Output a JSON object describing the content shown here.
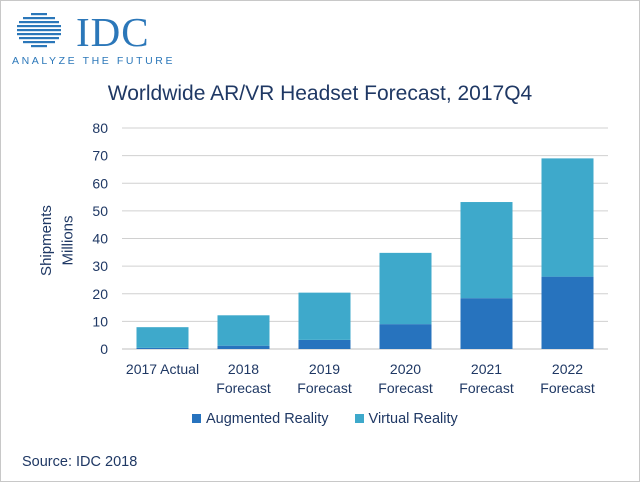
{
  "logo": {
    "word": "IDC",
    "tagline": "ANALYZE THE FUTURE"
  },
  "source": "Source: IDC 2018",
  "colors": {
    "ar": "#2773be",
    "vr": "#3ea9cb",
    "text": "#1f3864",
    "grid": "#d0d0d0",
    "brand": "#2b77b9"
  },
  "chart_data": {
    "type": "bar",
    "stacked": true,
    "title": "Worldwide AR/VR Headset Forecast, 2017Q4",
    "ylabel_line1": "Shipments",
    "ylabel_line2": "Millions",
    "ylim": [
      0,
      80
    ],
    "yticks": [
      0,
      10,
      20,
      30,
      40,
      50,
      60,
      70,
      80
    ],
    "grid": true,
    "legend_position": "bottom",
    "categories": [
      [
        "2017 Actual"
      ],
      [
        "2018",
        "Forecast"
      ],
      [
        "2019",
        "Forecast"
      ],
      [
        "2020",
        "Forecast"
      ],
      [
        "2021",
        "Forecast"
      ],
      [
        "2022",
        "Forecast"
      ]
    ],
    "series": [
      {
        "name": "Augmented Reality",
        "values": [
          0.4,
          1.2,
          3.3,
          9.0,
          18.4,
          26.2
        ]
      },
      {
        "name": "Virtual Reality",
        "values": [
          7.5,
          11.0,
          17.1,
          25.8,
          34.8,
          42.8
        ]
      }
    ]
  }
}
